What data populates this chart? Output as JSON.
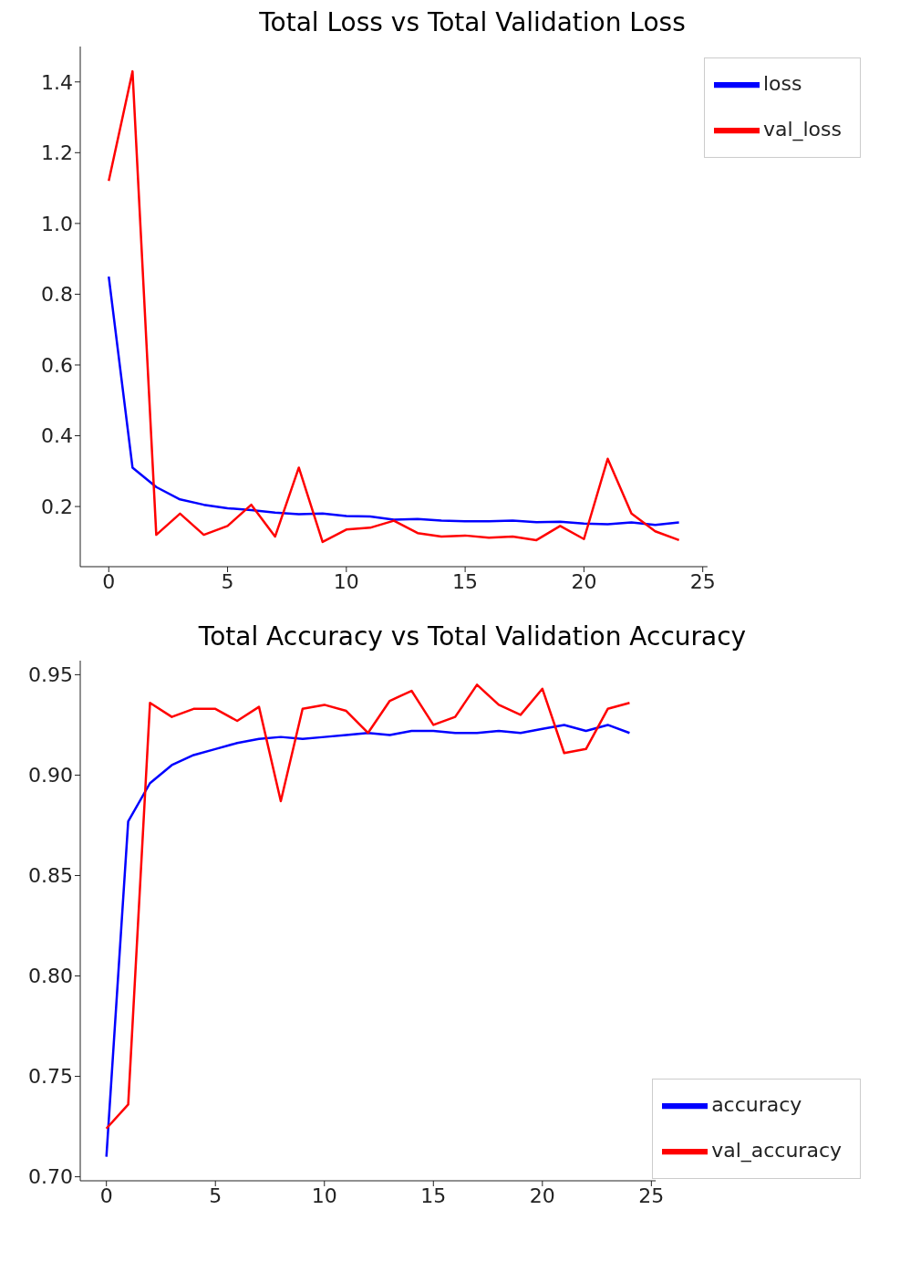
{
  "chart_data": [
    {
      "type": "line",
      "title": "Total Loss vs Total Validation Loss",
      "x": [
        0,
        1,
        2,
        3,
        4,
        5,
        6,
        7,
        8,
        9,
        10,
        11,
        12,
        13,
        14,
        15,
        16,
        17,
        18,
        19,
        20,
        21,
        22,
        23,
        24
      ],
      "series": [
        {
          "name": "loss",
          "color": "#0000ff",
          "values": [
            0.85,
            0.31,
            0.255,
            0.22,
            0.205,
            0.195,
            0.19,
            0.183,
            0.178,
            0.18,
            0.173,
            0.172,
            0.163,
            0.165,
            0.16,
            0.158,
            0.158,
            0.16,
            0.156,
            0.157,
            0.152,
            0.15,
            0.155,
            0.148,
            0.155
          ]
        },
        {
          "name": "val_loss",
          "color": "#ff0000",
          "values": [
            1.12,
            1.43,
            0.12,
            0.18,
            0.12,
            0.145,
            0.205,
            0.115,
            0.31,
            0.1,
            0.135,
            0.14,
            0.16,
            0.125,
            0.115,
            0.118,
            0.112,
            0.115,
            0.105,
            0.145,
            0.108,
            0.335,
            0.18,
            0.13,
            0.105
          ]
        }
      ],
      "xlim": [
        -1.2,
        25.2
      ],
      "xticks": [
        0,
        5,
        10,
        15,
        20,
        25
      ],
      "ylim": [
        0.03,
        1.5
      ],
      "yticks": [
        0.2,
        0.4,
        0.6,
        0.8,
        {
          "value": 1,
          "label": "1.0"
        },
        1.2,
        1.4
      ],
      "grid": false,
      "legend": "top right",
      "marker": "none",
      "line_style": "solid"
    },
    {
      "type": "line",
      "title": "Total Accuracy vs Total Validation Accuracy",
      "x": [
        0,
        1,
        2,
        3,
        4,
        5,
        6,
        7,
        8,
        9,
        10,
        11,
        12,
        13,
        14,
        15,
        16,
        17,
        18,
        19,
        20,
        21,
        22,
        23,
        24
      ],
      "series": [
        {
          "name": "accuracy",
          "color": "#0000ff",
          "values": [
            0.71,
            0.877,
            0.896,
            0.905,
            0.91,
            0.913,
            0.916,
            0.918,
            0.919,
            0.918,
            0.919,
            0.92,
            0.921,
            0.92,
            0.922,
            0.922,
            0.921,
            0.921,
            0.922,
            0.921,
            0.923,
            0.925,
            0.922,
            0.925,
            0.921
          ]
        },
        {
          "name": "val_accuracy",
          "color": "#ff0000",
          "values": [
            0.724,
            0.736,
            0.936,
            0.929,
            0.933,
            0.933,
            0.927,
            0.934,
            0.887,
            0.933,
            0.935,
            0.932,
            0.921,
            0.937,
            0.942,
            0.925,
            0.929,
            0.945,
            0.935,
            0.93,
            0.943,
            0.911,
            0.913,
            0.933,
            0.936
          ]
        }
      ],
      "xlim": [
        -1.2,
        25.2
      ],
      "xticks": [
        0,
        5,
        10,
        15,
        20,
        25
      ],
      "ylim": [
        0.698,
        0.957
      ],
      "yticks": [
        {
          "value": 0.7,
          "label": "0.70"
        },
        {
          "value": 0.75,
          "label": "0.75"
        },
        {
          "value": 0.8,
          "label": "0.80"
        },
        {
          "value": 0.85,
          "label": "0.85"
        },
        {
          "value": 0.9,
          "label": "0.90"
        },
        {
          "value": 0.95,
          "label": "0.95"
        }
      ],
      "grid": false,
      "legend": "bottom right",
      "marker": "none",
      "line_style": "solid"
    }
  ]
}
